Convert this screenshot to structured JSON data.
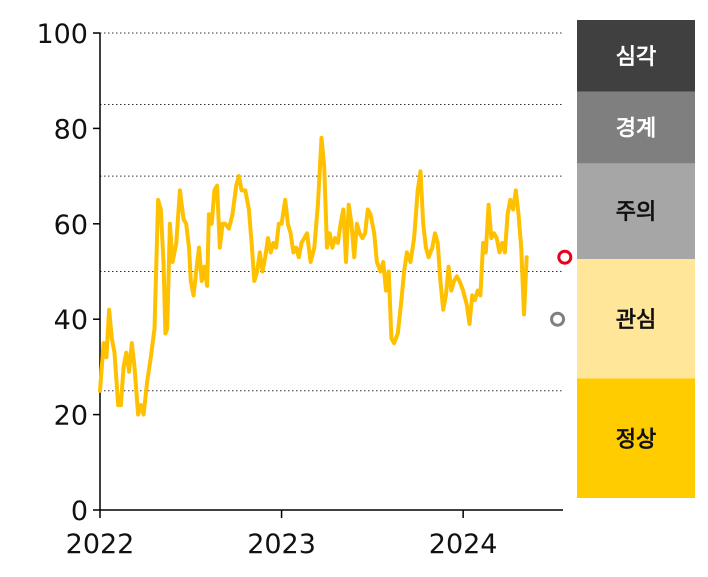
{
  "chart_data": {
    "type": "line",
    "title": "",
    "xlabel": "",
    "ylabel": "",
    "xlim": [
      2022.0,
      2024.55
    ],
    "ylim": [
      0,
      100
    ],
    "x_ticks": [
      "2022",
      "2023",
      "2024"
    ],
    "y_ticks": [
      "0",
      "20",
      "40",
      "60",
      "80",
      "100"
    ],
    "grid": "dotted horizontal lines at 25, 50, 70, 85, 100",
    "line_color": "#FFC000",
    "series": [
      {
        "values": [
          [
            2022.0,
            25
          ],
          [
            2022.02,
            35
          ],
          [
            2022.035,
            32
          ],
          [
            2022.05,
            42
          ],
          [
            2022.065,
            36
          ],
          [
            2022.08,
            33
          ],
          [
            2022.1,
            22
          ],
          [
            2022.115,
            22
          ],
          [
            2022.13,
            30
          ],
          [
            2022.145,
            33
          ],
          [
            2022.16,
            29
          ],
          [
            2022.175,
            35
          ],
          [
            2022.19,
            30
          ],
          [
            2022.21,
            20
          ],
          [
            2022.225,
            22
          ],
          [
            2022.24,
            20
          ],
          [
            2022.26,
            27
          ],
          [
            2022.28,
            32
          ],
          [
            2022.3,
            38
          ],
          [
            2022.32,
            65
          ],
          [
            2022.335,
            63
          ],
          [
            2022.35,
            52
          ],
          [
            2022.36,
            37
          ],
          [
            2022.37,
            38
          ],
          [
            2022.385,
            60
          ],
          [
            2022.4,
            52
          ],
          [
            2022.42,
            56
          ],
          [
            2022.44,
            67
          ],
          [
            2022.46,
            61
          ],
          [
            2022.475,
            60
          ],
          [
            2022.49,
            55
          ],
          [
            2022.5,
            48
          ],
          [
            2022.515,
            45
          ],
          [
            2022.53,
            50
          ],
          [
            2022.545,
            55
          ],
          [
            2022.56,
            48
          ],
          [
            2022.575,
            51
          ],
          [
            2022.59,
            47
          ],
          [
            2022.6,
            62
          ],
          [
            2022.615,
            60
          ],
          [
            2022.63,
            67
          ],
          [
            2022.645,
            68
          ],
          [
            2022.66,
            55
          ],
          [
            2022.675,
            60
          ],
          [
            2022.69,
            60
          ],
          [
            2022.71,
            59
          ],
          [
            2022.73,
            62
          ],
          [
            2022.75,
            68
          ],
          [
            2022.765,
            70
          ],
          [
            2022.78,
            67
          ],
          [
            2022.8,
            67
          ],
          [
            2022.82,
            63
          ],
          [
            2022.835,
            56
          ],
          [
            2022.85,
            48
          ],
          [
            2022.865,
            50
          ],
          [
            2022.88,
            54
          ],
          [
            2022.895,
            50
          ],
          [
            2022.91,
            53
          ],
          [
            2022.925,
            57
          ],
          [
            2022.94,
            54
          ],
          [
            2022.955,
            56
          ],
          [
            2022.97,
            55
          ],
          [
            2022.985,
            60
          ],
          [
            2023.0,
            60
          ],
          [
            2023.02,
            65
          ],
          [
            2023.035,
            60
          ],
          [
            2023.05,
            58
          ],
          [
            2023.065,
            54
          ],
          [
            2023.08,
            55
          ],
          [
            2023.095,
            53
          ],
          [
            2023.11,
            56
          ],
          [
            2023.125,
            57
          ],
          [
            2023.14,
            58
          ],
          [
            2023.16,
            52
          ],
          [
            2023.18,
            55
          ],
          [
            2023.2,
            64
          ],
          [
            2023.22,
            78
          ],
          [
            2023.235,
            72
          ],
          [
            2023.25,
            55
          ],
          [
            2023.265,
            58
          ],
          [
            2023.28,
            55
          ],
          [
            2023.295,
            57
          ],
          [
            2023.31,
            56
          ],
          [
            2023.325,
            60
          ],
          [
            2023.34,
            63
          ],
          [
            2023.355,
            52
          ],
          [
            2023.37,
            64
          ],
          [
            2023.385,
            60
          ],
          [
            2023.4,
            53
          ],
          [
            2023.415,
            60
          ],
          [
            2023.43,
            58
          ],
          [
            2023.445,
            57
          ],
          [
            2023.46,
            58
          ],
          [
            2023.475,
            63
          ],
          [
            2023.49,
            62
          ],
          [
            2023.51,
            58
          ],
          [
            2023.525,
            52
          ],
          [
            2023.545,
            50
          ],
          [
            2023.56,
            52
          ],
          [
            2023.575,
            46
          ],
          [
            2023.59,
            50
          ],
          [
            2023.605,
            36
          ],
          [
            2023.62,
            35
          ],
          [
            2023.64,
            37
          ],
          [
            2023.66,
            44
          ],
          [
            2023.675,
            50
          ],
          [
            2023.69,
            54
          ],
          [
            2023.71,
            52
          ],
          [
            2023.73,
            57
          ],
          [
            2023.75,
            67
          ],
          [
            2023.765,
            71
          ],
          [
            2023.78,
            60
          ],
          [
            2023.795,
            55
          ],
          [
            2023.81,
            53
          ],
          [
            2023.83,
            55
          ],
          [
            2023.845,
            58
          ],
          [
            2023.86,
            56
          ],
          [
            2023.875,
            48
          ],
          [
            2023.89,
            42
          ],
          [
            2023.905,
            45
          ],
          [
            2023.92,
            51
          ],
          [
            2023.935,
            46
          ],
          [
            2023.95,
            48
          ],
          [
            2023.965,
            49
          ],
          [
            2023.98,
            48
          ],
          [
            2024.0,
            46
          ],
          [
            2024.02,
            43
          ],
          [
            2024.035,
            39
          ],
          [
            2024.05,
            45
          ],
          [
            2024.065,
            44
          ],
          [
            2024.08,
            46
          ],
          [
            2024.095,
            45
          ],
          [
            2024.11,
            56
          ],
          [
            2024.125,
            54
          ],
          [
            2024.14,
            64
          ],
          [
            2024.155,
            57
          ],
          [
            2024.17,
            58
          ],
          [
            2024.185,
            57
          ],
          [
            2024.2,
            54
          ],
          [
            2024.215,
            56
          ],
          [
            2024.23,
            54
          ],
          [
            2024.245,
            62
          ],
          [
            2024.26,
            65
          ],
          [
            2024.275,
            63
          ],
          [
            2024.29,
            67
          ],
          [
            2024.305,
            62
          ],
          [
            2024.32,
            55
          ],
          [
            2024.335,
            41
          ],
          [
            2024.35,
            53
          ]
        ]
      }
    ],
    "highlight_points": [
      {
        "x": 2024.52,
        "y": 40,
        "color": "#808080"
      },
      {
        "x": 2024.56,
        "y": 53,
        "color": "#E8001C"
      }
    ],
    "bands": [
      {
        "label": "정상",
        "from": 0,
        "to": 25,
        "color": "#FFCC00",
        "text_color": "#111111"
      },
      {
        "label": "관심",
        "from": 25,
        "to": 50,
        "color": "#FFE699",
        "text_color": "#111111"
      },
      {
        "label": "주의",
        "from": 50,
        "to": 70,
        "color": "#A6A6A6",
        "text_color": "#111111"
      },
      {
        "label": "경계",
        "from": 70,
        "to": 85,
        "color": "#7F7F7F",
        "text_color": "#FFFFFF"
      },
      {
        "label": "심각",
        "from": 85,
        "to": 100,
        "color": "#404040",
        "text_color": "#FFFFFF"
      }
    ]
  }
}
